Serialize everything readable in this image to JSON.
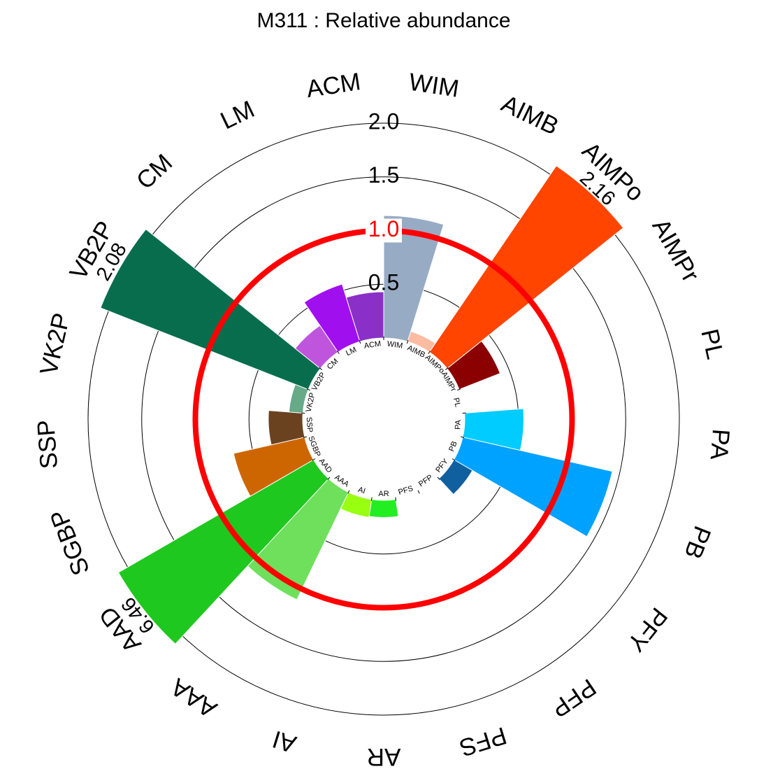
{
  "chart_data": {
    "type": "polar-bar",
    "title": "M311 : Relative abundance",
    "rings": [
      {
        "value": 0.5,
        "label": "0.5"
      },
      {
        "value": 1.0,
        "label": "1.0",
        "color": "#ff0000"
      },
      {
        "value": 1.5,
        "label": "1.5"
      },
      {
        "value": 2.0,
        "label": "2.0"
      }
    ],
    "reference_value": 1.0,
    "reference_color": "#ff0000",
    "capped_max": 2.0,
    "categories": [
      {
        "name": "WIM",
        "value": 1.14,
        "color": "#98abc5"
      },
      {
        "name": "AIMB",
        "value": 0.1,
        "color": "#fdbba1"
      },
      {
        "name": "AIMPo",
        "value": 2.16,
        "label": "2.16",
        "color": "#ff4500"
      },
      {
        "name": "AIMPr",
        "value": 0.41,
        "color": "#8b0000"
      },
      {
        "name": "PL",
        "value": 0.0,
        "color": "#1e90ff"
      },
      {
        "name": "PA",
        "value": 0.55,
        "color": "#00ccff"
      },
      {
        "name": "PB",
        "value": 1.43,
        "color": "#00a2ff"
      },
      {
        "name": "PFY",
        "value": 0.2,
        "color": "#1060a0"
      },
      {
        "name": "PFP",
        "value": 0.0,
        "color": "#2f4f7f"
      },
      {
        "name": "PFS",
        "value": 0.0,
        "color": "#3a5f8f"
      },
      {
        "name": "AR",
        "value": 0.16,
        "color": "#22ee22"
      },
      {
        "name": "AI",
        "value": 0.17,
        "color": "#99ff11"
      },
      {
        "name": "AAA",
        "value": 1.11,
        "color": "#6fe05c"
      },
      {
        "name": "AAD",
        "value": 6.46,
        "label": "6.46",
        "color": "#1ec81e"
      },
      {
        "name": "SGBP",
        "value": 0.68,
        "color": "#cd6600"
      },
      {
        "name": "SSP",
        "value": 0.32,
        "color": "#6b4220"
      },
      {
        "name": "VK2P",
        "value": 0.13,
        "color": "#66aa88"
      },
      {
        "name": "VB2P",
        "value": 2.08,
        "label": "2.08",
        "color": "#076d4d"
      },
      {
        "name": "CM",
        "value": 0.3,
        "color": "#bf55dd"
      },
      {
        "name": "LM",
        "value": 0.56,
        "color": "#a010ee"
      },
      {
        "name": "ACM",
        "value": 0.43,
        "color": "#8a30c8"
      }
    ]
  }
}
